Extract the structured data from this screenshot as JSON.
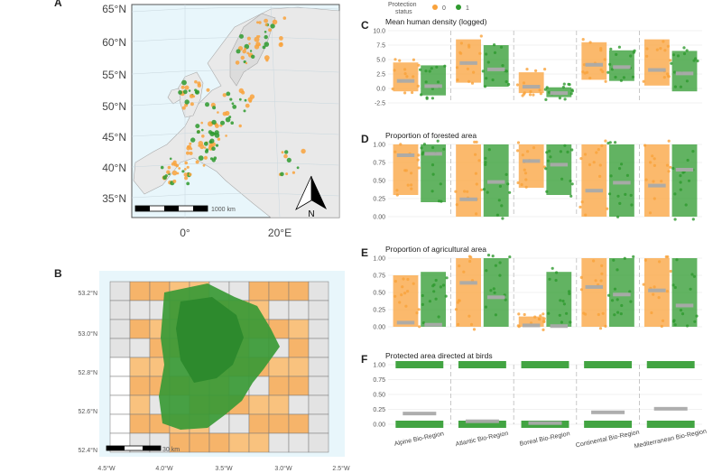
{
  "legend": {
    "title_line1": "Protection",
    "title_line2": "status",
    "entries": [
      {
        "label": "0",
        "color": "#f9a23b"
      },
      {
        "label": "1",
        "color": "#2e9a2e"
      }
    ]
  },
  "colors": {
    "unprotected": "#f9a23b",
    "protected": "#2e9a2e",
    "sea": "#e8f6fb",
    "land": "#e9e9e9",
    "median": "#aaaaaa"
  },
  "map_a": {
    "letter": "A",
    "lat_labels": [
      "65°N",
      "60°N",
      "55°N",
      "50°N",
      "45°N",
      "40°N",
      "35°N"
    ],
    "lon_labels": [
      "0°",
      "20°E"
    ],
    "scale_label": "1000 km",
    "north_label": "N"
  },
  "map_b": {
    "letter": "B",
    "lat_labels": [
      "53.2°N",
      "53.0°N",
      "52.8°N",
      "52.6°N",
      "52.4°N"
    ],
    "lon_labels": [
      "4.5°W",
      "4.0°W",
      "3.5°W",
      "3.0°W",
      "2.5°W"
    ],
    "scale_label": "30 km"
  },
  "chart_data": [
    {
      "letter": "C",
      "type": "scatter",
      "title": "Mean human density (logged)",
      "categories": [
        "Alpine Bio-Region",
        "Atlantic Bio-Region",
        "Boreal Bio-Region",
        "Continental Bio-Region",
        "Mediterranean Bio-Region"
      ],
      "ylim": [
        -2.5,
        10.0
      ],
      "yticks": [
        "10.0",
        "7.5",
        "5.0",
        "2.5",
        "0.0",
        "-2.5"
      ],
      "series": [
        {
          "name": "0",
          "median": [
            1.3,
            4.4,
            0.3,
            4.1,
            3.2
          ],
          "spread": [
            [
              -0.5,
              4.5
            ],
            [
              1.0,
              8.5
            ],
            [
              -0.8,
              2.8
            ],
            [
              1.5,
              8.0
            ],
            [
              0.5,
              8.5
            ]
          ]
        },
        {
          "name": "1",
          "median": [
            0.4,
            3.3,
            -0.8,
            3.7,
            2.6
          ],
          "spread": [
            [
              -1.2,
              4.0
            ],
            [
              0.3,
              7.5
            ],
            [
              -1.5,
              0.2
            ],
            [
              1.3,
              6.6
            ],
            [
              -0.5,
              6.5
            ]
          ]
        }
      ]
    },
    {
      "letter": "D",
      "type": "scatter",
      "title": "Proportion of forested area",
      "categories": [
        "Alpine Bio-Region",
        "Atlantic Bio-Region",
        "Boreal Bio-Region",
        "Continental Bio-Region",
        "Mediterranean Bio-Region"
      ],
      "ylim": [
        0,
        1.0
      ],
      "yticks": [
        "1.00",
        "0.75",
        "0.50",
        "0.25",
        "0.00"
      ],
      "series": [
        {
          "name": "0",
          "median": [
            0.85,
            0.24,
            0.77,
            0.36,
            0.43
          ],
          "spread": [
            [
              0.3,
              1.0
            ],
            [
              0.0,
              1.0
            ],
            [
              0.4,
              1.0
            ],
            [
              0.0,
              1.0
            ],
            [
              0.0,
              1.0
            ]
          ]
        },
        {
          "name": "1",
          "median": [
            0.87,
            0.48,
            0.72,
            0.47,
            0.65
          ],
          "spread": [
            [
              0.2,
              1.0
            ],
            [
              0.0,
              1.0
            ],
            [
              0.3,
              1.0
            ],
            [
              0.0,
              1.0
            ],
            [
              0.0,
              1.0
            ]
          ]
        }
      ]
    },
    {
      "letter": "E",
      "type": "scatter",
      "title": "Proportion of agricultural area",
      "categories": [
        "Alpine Bio-Region",
        "Atlantic Bio-Region",
        "Boreal Bio-Region",
        "Continental Bio-Region",
        "Mediterranean Bio-Region"
      ],
      "ylim": [
        0,
        1.0
      ],
      "yticks": [
        "1.00",
        "0.75",
        "0.50",
        "0.25",
        "0.00"
      ],
      "series": [
        {
          "name": "0",
          "median": [
            0.06,
            0.64,
            0.02,
            0.58,
            0.53
          ],
          "spread": [
            [
              0.0,
              0.75
            ],
            [
              0.0,
              1.0
            ],
            [
              0.0,
              0.15
            ],
            [
              0.0,
              1.0
            ],
            [
              0.0,
              1.0
            ]
          ]
        },
        {
          "name": "1",
          "median": [
            0.03,
            0.43,
            0.01,
            0.47,
            0.31
          ],
          "spread": [
            [
              0.0,
              0.8
            ],
            [
              0.0,
              1.0
            ],
            [
              0.0,
              0.8
            ],
            [
              0.0,
              1.0
            ],
            [
              0.0,
              1.0
            ]
          ]
        }
      ]
    },
    {
      "letter": "F",
      "type": "scatter",
      "title": "Protected area directed at birds",
      "categories": [
        "Alpine Bio-Region",
        "Atlantic Bio-Region",
        "Boreal Bio-Region",
        "Continental Bio-Region",
        "Mediterranean Bio-Region"
      ],
      "ylim": [
        0,
        1.0
      ],
      "yticks": [
        "1.00",
        "0.75",
        "0.50",
        "0.25",
        "0.00"
      ],
      "series": [
        {
          "name": "1",
          "median": [
            0.18,
            0.05,
            0.02,
            0.2,
            0.26
          ],
          "binary": true
        }
      ]
    }
  ]
}
